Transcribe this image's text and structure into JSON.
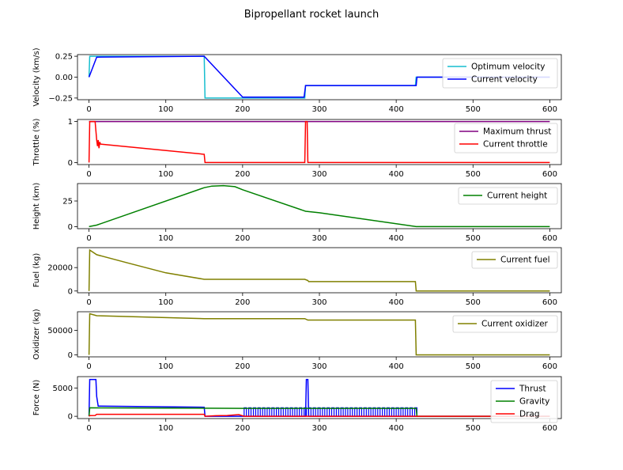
{
  "title": "Bipropellant rocket launch",
  "chart_data": [
    {
      "type": "line",
      "ylabel": "Velocity (km/s)",
      "xlim": [
        -15,
        615
      ],
      "ylim": [
        -0.27,
        0.27
      ],
      "xticks": [
        0,
        100,
        200,
        300,
        400,
        500,
        600
      ],
      "yticks": [
        -0.25,
        0.0,
        0.25
      ],
      "ytick_labels": [
        "−0.25",
        "0.00",
        "0.25"
      ],
      "legend_loc": "upper right",
      "series": [
        {
          "name": "Optimum  velocity",
          "color": "#17becf",
          "x": [
            0,
            1,
            2,
            150,
            151,
            281,
            282,
            425,
            426,
            600
          ],
          "y": [
            0,
            0.25,
            0.25,
            0.25,
            -0.25,
            -0.25,
            -0.1,
            -0.1,
            0,
            0
          ]
        },
        {
          "name": "Current velocity",
          "color": "#0000ff",
          "x": [
            0,
            10,
            150,
            200,
            280,
            282,
            300,
            426,
            427,
            600
          ],
          "y": [
            0,
            0.24,
            0.25,
            -0.24,
            -0.24,
            -0.1,
            -0.1,
            -0.1,
            0,
            0
          ]
        }
      ]
    },
    {
      "type": "line",
      "ylabel": "Throttle (%)",
      "xlim": [
        -15,
        615
      ],
      "ylim": [
        -0.05,
        1.05
      ],
      "xticks": [
        0,
        100,
        200,
        300,
        400,
        500,
        600
      ],
      "yticks": [
        0,
        1
      ],
      "ytick_labels": [
        "0",
        "1"
      ],
      "legend_loc": "upper right",
      "series": [
        {
          "name": "Maximum thrust",
          "color": "#800080",
          "x": [
            0,
            600
          ],
          "y": [
            1,
            1
          ]
        },
        {
          "name": "Current throttle",
          "color": "#ff0000",
          "x": [
            0,
            1,
            8,
            10,
            11,
            12,
            13,
            14,
            15,
            150,
            151,
            281,
            282,
            284,
            285,
            286,
            600
          ],
          "y": [
            0,
            1,
            1,
            0.55,
            0.4,
            0.55,
            0.35,
            0.5,
            0.45,
            0.2,
            0,
            0,
            1,
            1,
            0,
            0,
            0
          ]
        }
      ]
    },
    {
      "type": "line",
      "ylabel": "Height (km)",
      "xlim": [
        -15,
        615
      ],
      "ylim": [
        -2,
        42
      ],
      "xticks": [
        0,
        100,
        200,
        300,
        400,
        500,
        600
      ],
      "yticks": [
        0,
        25
      ],
      "ytick_labels": [
        "0",
        "25"
      ],
      "legend_loc": "upper right",
      "series": [
        {
          "name": "Current height",
          "color": "#008000",
          "x": [
            0,
            10,
            150,
            160,
            175,
            190,
            200,
            282,
            300,
            426,
            600
          ],
          "y": [
            0,
            1.5,
            38,
            39.5,
            40,
            39,
            36,
            15,
            13.5,
            0,
            0
          ]
        }
      ]
    },
    {
      "type": "line",
      "ylabel": "Fuel (kg)",
      "xlim": [
        -15,
        615
      ],
      "ylim": [
        -1500,
        37000
      ],
      "xticks": [
        0,
        100,
        200,
        300,
        400,
        500,
        600
      ],
      "yticks": [
        0,
        20000
      ],
      "ytick_labels": [
        "0",
        "20000"
      ],
      "legend_loc": "upper right",
      "series": [
        {
          "name": "Current fuel",
          "color": "#808000",
          "x": [
            0,
            1,
            10,
            50,
            100,
            150,
            281,
            285,
            286,
            425,
            426,
            600
          ],
          "y": [
            0,
            35000,
            31000,
            24000,
            15500,
            10000,
            10000,
            9000,
            8000,
            8000,
            0,
            0
          ]
        }
      ]
    },
    {
      "type": "line",
      "ylabel": "Oxidizer (kg)",
      "xlim": [
        -15,
        615
      ],
      "ylim": [
        -4000,
        88000
      ],
      "xticks": [
        0,
        100,
        200,
        300,
        400,
        500,
        600
      ],
      "yticks": [
        0,
        50000
      ],
      "ytick_labels": [
        "0",
        "50000"
      ],
      "legend_loc": "upper right",
      "series": [
        {
          "name": "Current oxidizer",
          "color": "#808000",
          "x": [
            0,
            1,
            10,
            150,
            281,
            285,
            425,
            426,
            600
          ],
          "y": [
            0,
            84000,
            80000,
            74000,
            74000,
            71000,
            71000,
            0,
            0
          ]
        }
      ]
    },
    {
      "type": "line",
      "ylabel": "Force (N)",
      "xlim": [
        -15,
        615
      ],
      "ylim": [
        -400,
        7000
      ],
      "xticks": [
        0,
        100,
        200,
        300,
        400,
        500,
        600
      ],
      "yticks": [
        0,
        5000
      ],
      "ytick_labels": [
        "0",
        "5000"
      ],
      "legend_loc": "upper right",
      "series": [
        {
          "name": "Thrust",
          "color": "#0000ff",
          "x": [
            0,
            1,
            9,
            10,
            12,
            150,
            151,
            282,
            283,
            285,
            286,
            426,
            427,
            600
          ],
          "y": [
            0,
            6500,
            6500,
            3500,
            1800,
            1600,
            0,
            0,
            6500,
            6500,
            0,
            0,
            0,
            0
          ],
          "pulse_band": [
            202,
            426,
            1500
          ]
        },
        {
          "name": "Gravity",
          "color": "#008000",
          "x": [
            0,
            1,
            202,
            426,
            427,
            600
          ],
          "y": [
            0,
            1500,
            1400,
            1400,
            0,
            0
          ]
        },
        {
          "name": "Drag",
          "color": "#ff0000",
          "x": [
            0,
            1,
            8,
            10,
            150,
            151,
            165,
            180,
            195,
            202,
            426,
            600
          ],
          "y": [
            0,
            120,
            150,
            350,
            350,
            0,
            100,
            150,
            300,
            0,
            0,
            0
          ]
        }
      ]
    }
  ]
}
